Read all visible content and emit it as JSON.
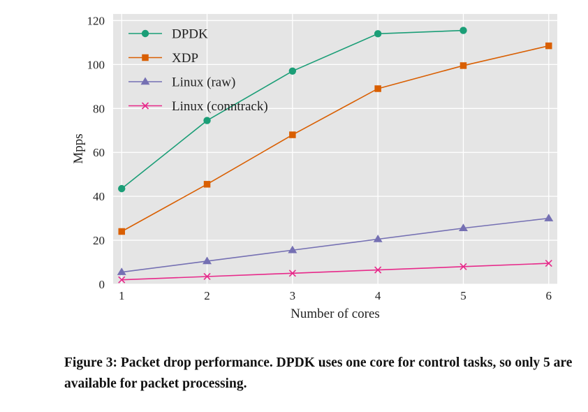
{
  "chart_data": {
    "type": "line",
    "xlabel": "Number of cores",
    "ylabel": "Mpps",
    "x_ticks": [
      1,
      2,
      3,
      4,
      5,
      6
    ],
    "y_ticks": [
      0,
      20,
      40,
      60,
      80,
      100,
      120
    ],
    "xlim": [
      0.9,
      6.1
    ],
    "ylim": [
      0,
      123
    ],
    "grid": true,
    "legend_position": "top-left",
    "series": [
      {
        "name": "DPDK",
        "marker": "circle",
        "color": "#1b9e77",
        "x": [
          1,
          2,
          3,
          4,
          5
        ],
        "y": [
          43.5,
          74.5,
          97,
          114,
          115.5
        ]
      },
      {
        "name": "XDP",
        "marker": "square",
        "color": "#d95f02",
        "x": [
          1,
          2,
          3,
          4,
          5,
          6
        ],
        "y": [
          24,
          45.5,
          68,
          89,
          99.5,
          108.5
        ]
      },
      {
        "name": "Linux (raw)",
        "marker": "triangle",
        "color": "#7570b3",
        "x": [
          1,
          2,
          3,
          4,
          5,
          6
        ],
        "y": [
          5.5,
          10.5,
          15.5,
          20.5,
          25.5,
          30
        ]
      },
      {
        "name": "Linux (conntrack)",
        "marker": "x",
        "color": "#e7298a",
        "x": [
          1,
          2,
          3,
          4,
          5,
          6
        ],
        "y": [
          2,
          3.5,
          5,
          6.5,
          8,
          9.5
        ]
      }
    ]
  },
  "caption": "Figure 3: Packet drop performance. DPDK uses one core for control tasks, so only 5 are available for packet processing."
}
